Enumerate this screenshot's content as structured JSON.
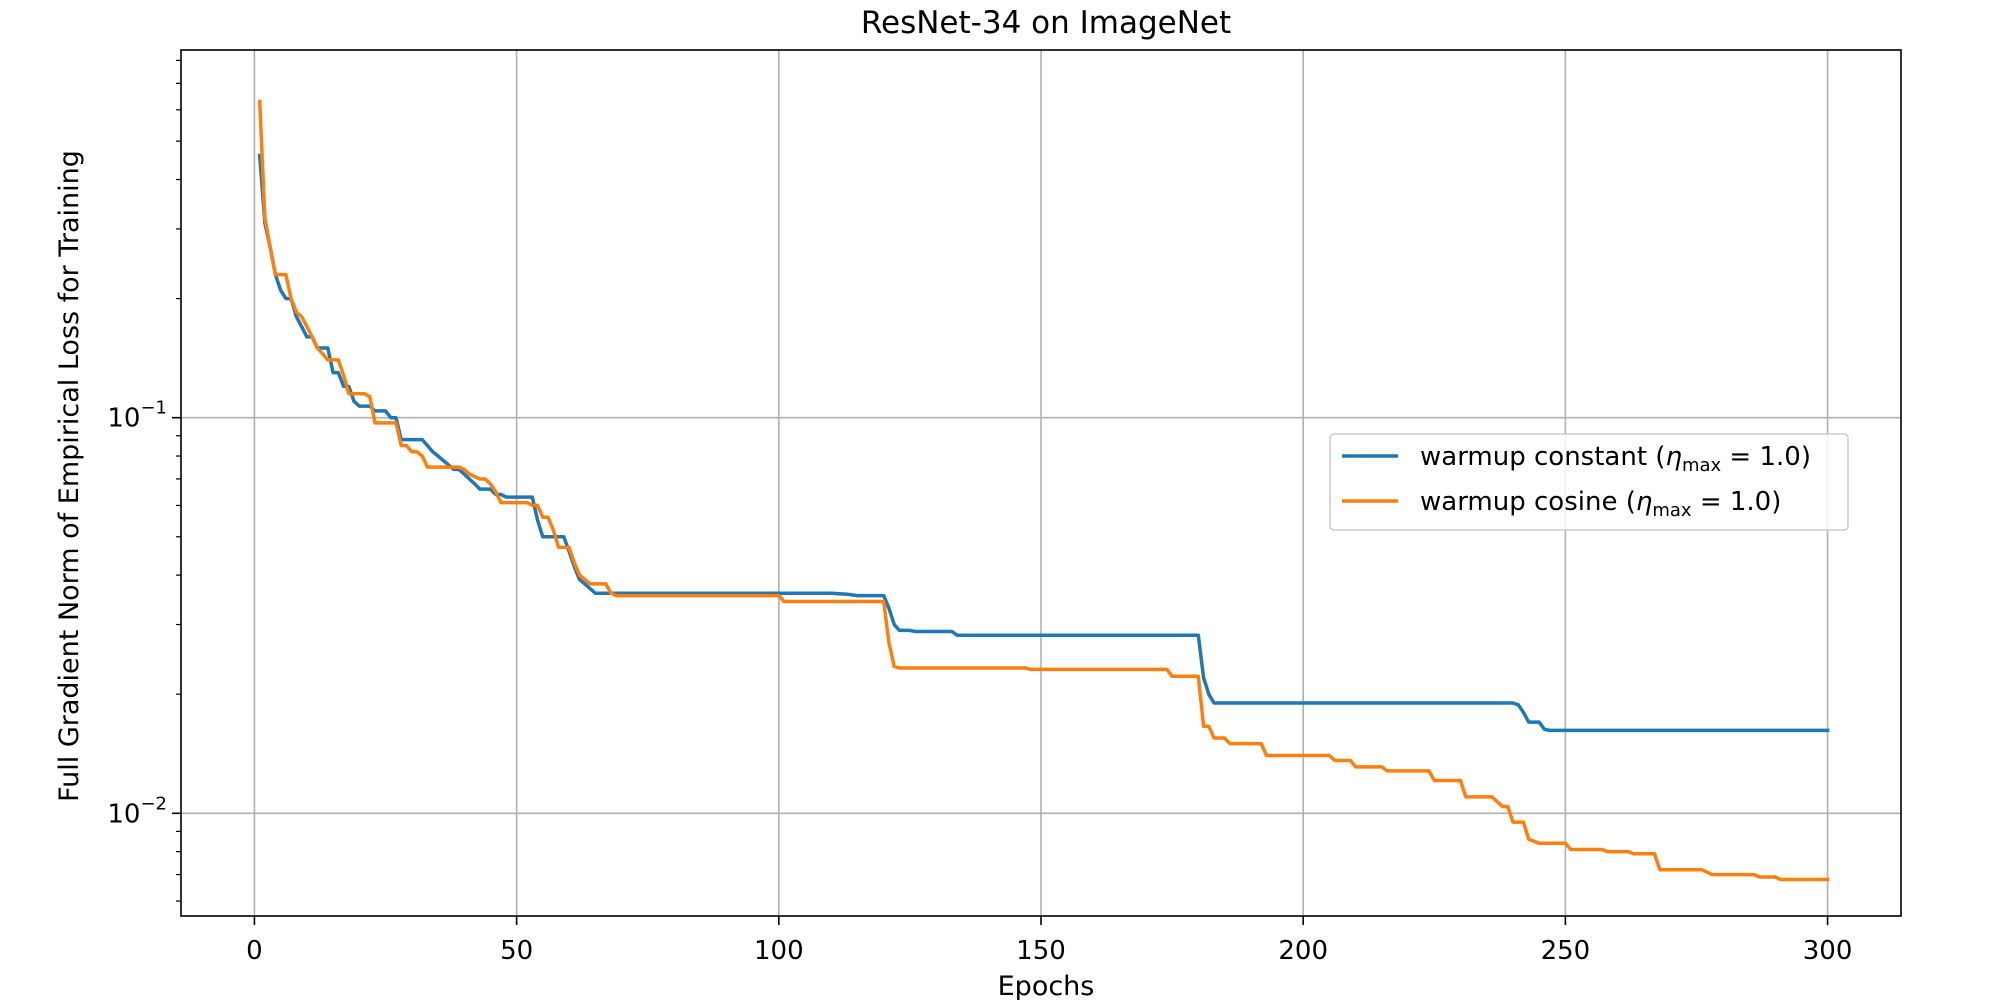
{
  "chart_data": {
    "type": "line",
    "title": "ResNet-34 on ImageNet",
    "xlabel": "Epochs",
    "ylabel": "Full Gradient Norm of Empirical Loss for Training",
    "xlim": [
      -14,
      314
    ],
    "ylim": [
      0.0055,
      0.85
    ],
    "yscale": "log",
    "grid": true,
    "legend_position": "center-right",
    "x_ticks": [
      0,
      50,
      100,
      150,
      200,
      250,
      300
    ],
    "x_tick_labels": [
      "0",
      "50",
      "100",
      "150",
      "200",
      "250",
      "300"
    ],
    "y_ticks": [
      {
        "value": 0.1,
        "base": "10",
        "exp": "−1"
      },
      {
        "value": 0.01,
        "base": "10",
        "exp": "−2"
      }
    ],
    "series": [
      {
        "name": "warmup constant",
        "legend_prefix": "warmup constant (",
        "legend_eta": "η",
        "legend_sub": "max",
        "legend_suffix": " = 1.0)",
        "color": "#1f77b4",
        "points": [
          [
            1,
            0.46
          ],
          [
            2,
            0.31
          ],
          [
            3,
            0.27
          ],
          [
            4,
            0.23
          ],
          [
            5,
            0.21
          ],
          [
            6,
            0.2
          ],
          [
            7,
            0.2
          ],
          [
            8,
            0.18
          ],
          [
            9,
            0.17
          ],
          [
            10,
            0.16
          ],
          [
            11,
            0.16
          ],
          [
            12,
            0.15
          ],
          [
            13,
            0.15
          ],
          [
            14,
            0.15
          ],
          [
            15,
            0.13
          ],
          [
            16,
            0.13
          ],
          [
            17,
            0.12
          ],
          [
            18,
            0.12
          ],
          [
            19,
            0.11
          ],
          [
            20,
            0.107
          ],
          [
            21,
            0.107
          ],
          [
            22,
            0.107
          ],
          [
            23,
            0.104
          ],
          [
            24,
            0.104
          ],
          [
            25,
            0.104
          ],
          [
            26,
            0.1
          ],
          [
            27,
            0.1
          ],
          [
            28,
            0.088
          ],
          [
            29,
            0.088
          ],
          [
            30,
            0.088
          ],
          [
            31,
            0.088
          ],
          [
            32,
            0.088
          ],
          [
            33,
            0.085
          ],
          [
            34,
            0.082
          ],
          [
            35,
            0.08
          ],
          [
            36,
            0.078
          ],
          [
            37,
            0.076
          ],
          [
            38,
            0.074
          ],
          [
            39,
            0.074
          ],
          [
            40,
            0.072
          ],
          [
            41,
            0.07
          ],
          [
            42,
            0.068
          ],
          [
            43,
            0.066
          ],
          [
            44,
            0.066
          ],
          [
            45,
            0.066
          ],
          [
            46,
            0.064
          ],
          [
            47,
            0.064
          ],
          [
            48,
            0.063
          ],
          [
            49,
            0.063
          ],
          [
            50,
            0.063
          ],
          [
            51,
            0.063
          ],
          [
            52,
            0.063
          ],
          [
            53,
            0.063
          ],
          [
            54,
            0.055
          ],
          [
            55,
            0.05
          ],
          [
            56,
            0.05
          ],
          [
            57,
            0.05
          ],
          [
            58,
            0.05
          ],
          [
            59,
            0.05
          ],
          [
            60,
            0.046
          ],
          [
            61,
            0.042
          ],
          [
            62,
            0.039
          ],
          [
            63,
            0.038
          ],
          [
            64,
            0.037
          ],
          [
            65,
            0.036
          ],
          [
            66,
            0.036
          ],
          [
            68,
            0.036
          ],
          [
            70,
            0.036
          ],
          [
            80,
            0.036
          ],
          [
            90,
            0.036
          ],
          [
            100,
            0.036
          ],
          [
            110,
            0.036
          ],
          [
            113,
            0.0358
          ],
          [
            115,
            0.0355
          ],
          [
            118,
            0.0355
          ],
          [
            120,
            0.0355
          ],
          [
            121,
            0.033
          ],
          [
            122,
            0.03
          ],
          [
            123,
            0.029
          ],
          [
            124,
            0.029
          ],
          [
            125,
            0.029
          ],
          [
            126,
            0.0288
          ],
          [
            130,
            0.0288
          ],
          [
            133,
            0.0288
          ],
          [
            134,
            0.0282
          ],
          [
            140,
            0.0282
          ],
          [
            150,
            0.0282
          ],
          [
            160,
            0.0282
          ],
          [
            170,
            0.0282
          ],
          [
            179,
            0.0282
          ],
          [
            180,
            0.0282
          ],
          [
            181,
            0.022
          ],
          [
            182,
            0.02
          ],
          [
            183,
            0.019
          ],
          [
            190,
            0.019
          ],
          [
            200,
            0.019
          ],
          [
            210,
            0.019
          ],
          [
            220,
            0.019
          ],
          [
            230,
            0.019
          ],
          [
            240,
            0.019
          ],
          [
            241,
            0.0188
          ],
          [
            242,
            0.018
          ],
          [
            243,
            0.017
          ],
          [
            244,
            0.017
          ],
          [
            245,
            0.017
          ],
          [
            246,
            0.0163
          ],
          [
            247,
            0.0162
          ],
          [
            260,
            0.0162
          ],
          [
            280,
            0.0162
          ],
          [
            300,
            0.0162
          ]
        ]
      },
      {
        "name": "warmup cosine",
        "legend_prefix": "warmup cosine (",
        "legend_eta": "η",
        "legend_sub": "max",
        "legend_suffix": " = 1.0)",
        "color": "#ff7f0e",
        "points": [
          [
            1,
            0.63
          ],
          [
            2,
            0.32
          ],
          [
            3,
            0.27
          ],
          [
            4,
            0.23
          ],
          [
            5,
            0.23
          ],
          [
            6,
            0.23
          ],
          [
            7,
            0.2
          ],
          [
            8,
            0.185
          ],
          [
            9,
            0.18
          ],
          [
            10,
            0.17
          ],
          [
            11,
            0.16
          ],
          [
            12,
            0.15
          ],
          [
            13,
            0.145
          ],
          [
            14,
            0.14
          ],
          [
            15,
            0.14
          ],
          [
            16,
            0.14
          ],
          [
            17,
            0.128
          ],
          [
            18,
            0.115
          ],
          [
            19,
            0.115
          ],
          [
            20,
            0.115
          ],
          [
            21,
            0.115
          ],
          [
            22,
            0.113
          ],
          [
            23,
            0.097
          ],
          [
            24,
            0.097
          ],
          [
            25,
            0.097
          ],
          [
            26,
            0.097
          ],
          [
            27,
            0.097
          ],
          [
            28,
            0.085
          ],
          [
            29,
            0.085
          ],
          [
            30,
            0.082
          ],
          [
            31,
            0.082
          ],
          [
            32,
            0.08
          ],
          [
            33,
            0.075
          ],
          [
            34,
            0.075
          ],
          [
            35,
            0.075
          ],
          [
            36,
            0.075
          ],
          [
            37,
            0.075
          ],
          [
            38,
            0.075
          ],
          [
            39,
            0.075
          ],
          [
            40,
            0.074
          ],
          [
            41,
            0.072
          ],
          [
            42,
            0.071
          ],
          [
            43,
            0.07
          ],
          [
            44,
            0.07
          ],
          [
            45,
            0.068
          ],
          [
            46,
            0.065
          ],
          [
            47,
            0.061
          ],
          [
            48,
            0.061
          ],
          [
            49,
            0.061
          ],
          [
            50,
            0.061
          ],
          [
            51,
            0.061
          ],
          [
            52,
            0.061
          ],
          [
            53,
            0.06
          ],
          [
            54,
            0.06
          ],
          [
            55,
            0.056
          ],
          [
            56,
            0.056
          ],
          [
            57,
            0.052
          ],
          [
            58,
            0.047
          ],
          [
            59,
            0.047
          ],
          [
            60,
            0.047
          ],
          [
            61,
            0.043
          ],
          [
            62,
            0.04
          ],
          [
            63,
            0.039
          ],
          [
            64,
            0.038
          ],
          [
            65,
            0.038
          ],
          [
            66,
            0.038
          ],
          [
            67,
            0.038
          ],
          [
            68,
            0.036
          ],
          [
            69,
            0.0355
          ],
          [
            70,
            0.0355
          ],
          [
            80,
            0.0355
          ],
          [
            90,
            0.0355
          ],
          [
            100,
            0.0355
          ],
          [
            101,
            0.0343
          ],
          [
            110,
            0.0343
          ],
          [
            115,
            0.0343
          ],
          [
            120,
            0.0343
          ],
          [
            121,
            0.027
          ],
          [
            122,
            0.0235
          ],
          [
            123,
            0.0233
          ],
          [
            130,
            0.0233
          ],
          [
            140,
            0.0233
          ],
          [
            147,
            0.0233
          ],
          [
            148,
            0.0231
          ],
          [
            160,
            0.0231
          ],
          [
            170,
            0.0231
          ],
          [
            174,
            0.0231
          ],
          [
            175,
            0.0222
          ],
          [
            180,
            0.0222
          ],
          [
            181,
            0.0166
          ],
          [
            182,
            0.0166
          ],
          [
            183,
            0.0155
          ],
          [
            185,
            0.0155
          ],
          [
            186,
            0.015
          ],
          [
            190,
            0.015
          ],
          [
            192,
            0.015
          ],
          [
            193,
            0.014
          ],
          [
            200,
            0.014
          ],
          [
            205,
            0.014
          ],
          [
            206,
            0.0136
          ],
          [
            209,
            0.0136
          ],
          [
            210,
            0.0131
          ],
          [
            215,
            0.0131
          ],
          [
            216,
            0.0128
          ],
          [
            224,
            0.0128
          ],
          [
            225,
            0.0121
          ],
          [
            228,
            0.0121
          ],
          [
            230,
            0.0121
          ],
          [
            231,
            0.011
          ],
          [
            235,
            0.011
          ],
          [
            236,
            0.011
          ],
          [
            237,
            0.0107
          ],
          [
            238,
            0.0104
          ],
          [
            239,
            0.0104
          ],
          [
            240,
            0.0095
          ],
          [
            242,
            0.0095
          ],
          [
            243,
            0.0086
          ],
          [
            245,
            0.0084
          ],
          [
            250,
            0.0084
          ],
          [
            251,
            0.0081
          ],
          [
            257,
            0.0081
          ],
          [
            258,
            0.008
          ],
          [
            262,
            0.008
          ],
          [
            263,
            0.0079
          ],
          [
            267,
            0.0079
          ],
          [
            268,
            0.0072
          ],
          [
            273,
            0.0072
          ],
          [
            274,
            0.0072
          ],
          [
            275,
            0.0072
          ],
          [
            276,
            0.0072
          ],
          [
            278,
            0.007
          ],
          [
            280,
            0.007
          ],
          [
            286,
            0.007
          ],
          [
            287,
            0.0069
          ],
          [
            290,
            0.0069
          ],
          [
            291,
            0.0068
          ],
          [
            295,
            0.0068
          ],
          [
            300,
            0.0068
          ]
        ]
      }
    ]
  }
}
